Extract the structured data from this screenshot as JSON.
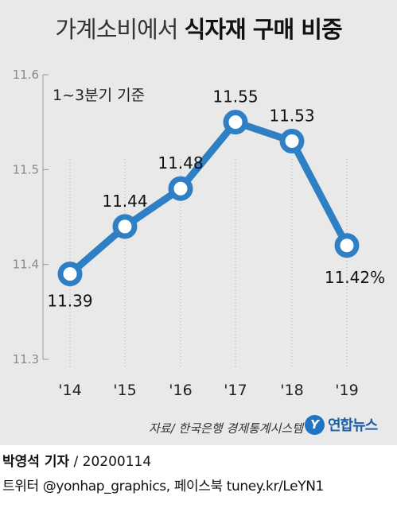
{
  "title_light": "가계소비에서",
  "title_bold": "식자재 구매 비중",
  "subtitle": "1~3분기 기준",
  "source": "자료/ 한국은행 경제통계시스템",
  "logo_text": "연합뉴스",
  "logo_mark": "Y",
  "byline_name": "박영석 기자",
  "byline_date": "/  20200114",
  "social": "트위터 @yonhap_graphics, 페이스북 tuney.kr/LeYN1",
  "colors": {
    "line": "#2f7fc4",
    "background": "#e9e9e9",
    "marker_fill": "#ffffff"
  },
  "chart_data": {
    "type": "line",
    "title": "가계소비에서 식자재 구매 비중",
    "subtitle": "1~3분기 기준",
    "categories": [
      "'14",
      "'15",
      "'16",
      "'17",
      "'18",
      "'19"
    ],
    "values": [
      11.39,
      11.44,
      11.48,
      11.55,
      11.53,
      11.42
    ],
    "data_labels": [
      "11.39",
      "11.44",
      "11.48",
      "11.55",
      "11.53",
      "11.42%"
    ],
    "yticks": [
      "11.6",
      "11.5",
      "11.4",
      "11.3"
    ],
    "ylim": [
      11.3,
      11.6
    ],
    "unit": "%",
    "grid": "vertical dotted"
  }
}
